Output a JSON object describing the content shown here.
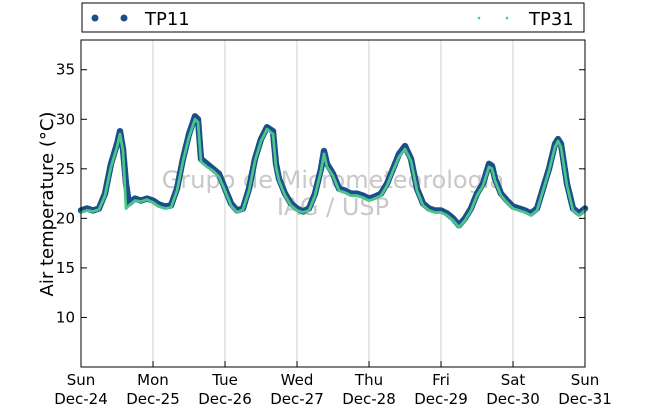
{
  "chart_data": {
    "type": "scatter",
    "ylabel": "Air temperature (°C)",
    "ylim": [
      5,
      38
    ],
    "yticks": [
      10,
      15,
      20,
      25,
      30,
      35
    ],
    "xlim": [
      "2012-12-24 00:00",
      "2012-12-31 00:00"
    ],
    "xticks": [
      {
        "day": "Sun",
        "date": "Dec-24"
      },
      {
        "day": "Mon",
        "date": "Dec-25"
      },
      {
        "day": "Tue",
        "date": "Dec-26"
      },
      {
        "day": "Wed",
        "date": "Dec-27"
      },
      {
        "day": "Thu",
        "date": "Dec-28"
      },
      {
        "day": "Fri",
        "date": "Dec-29"
      },
      {
        "day": "Sat",
        "date": "Dec-30"
      },
      {
        "day": "Sun",
        "date": "Dec-31"
      }
    ],
    "grid": "vertical",
    "legend_position": "top",
    "watermark": [
      "Grupo de Micrometeorologia",
      "IAG / USP"
    ],
    "series": [
      {
        "name": "TP11",
        "color": "#1a4f8b",
        "marker": "large-dot",
        "points": [
          [
            "Dec-24 00:00",
            20.8
          ],
          [
            "Dec-24 02:00",
            21.0
          ],
          [
            "Dec-24 04:00",
            20.8
          ],
          [
            "Dec-24 06:00",
            21.0
          ],
          [
            "Dec-24 08:00",
            22.5
          ],
          [
            "Dec-24 10:00",
            25.5
          ],
          [
            "Dec-24 12:00",
            27.5
          ],
          [
            "Dec-24 13:00",
            28.8
          ],
          [
            "Dec-24 14:00",
            27.0
          ],
          [
            "Dec-24 15:00",
            23.5
          ],
          [
            "Dec-24 16:00",
            21.5
          ],
          [
            "Dec-24 18:00",
            22.0
          ],
          [
            "Dec-24 20:00",
            21.8
          ],
          [
            "Dec-24 22:00",
            22.0
          ],
          [
            "Dec-25 00:00",
            21.8
          ],
          [
            "Dec-25 02:00",
            21.4
          ],
          [
            "Dec-25 04:00",
            21.2
          ],
          [
            "Dec-25 06:00",
            21.3
          ],
          [
            "Dec-25 08:00",
            23.0
          ],
          [
            "Dec-25 10:00",
            26.0
          ],
          [
            "Dec-25 12:00",
            28.5
          ],
          [
            "Dec-25 14:00",
            30.3
          ],
          [
            "Dec-25 15:00",
            30.0
          ],
          [
            "Dec-25 16:00",
            26.0
          ],
          [
            "Dec-25 18:00",
            25.5
          ],
          [
            "Dec-25 20:00",
            25.0
          ],
          [
            "Dec-25 22:00",
            24.5
          ],
          [
            "Dec-26 00:00",
            23.0
          ],
          [
            "Dec-26 02:00",
            21.5
          ],
          [
            "Dec-26 04:00",
            20.8
          ],
          [
            "Dec-26 06:00",
            21.0
          ],
          [
            "Dec-26 08:00",
            23.0
          ],
          [
            "Dec-26 10:00",
            26.0
          ],
          [
            "Dec-26 12:00",
            28.0
          ],
          [
            "Dec-26 14:00",
            29.2
          ],
          [
            "Dec-26 16:00",
            28.8
          ],
          [
            "Dec-26 17:00",
            25.5
          ],
          [
            "Dec-26 18:00",
            24.0
          ],
          [
            "Dec-26 20:00",
            22.5
          ],
          [
            "Dec-26 22:00",
            21.5
          ],
          [
            "Dec-27 00:00",
            21.0
          ],
          [
            "Dec-27 02:00",
            20.7
          ],
          [
            "Dec-27 04:00",
            21.0
          ],
          [
            "Dec-27 06:00",
            22.5
          ],
          [
            "Dec-27 08:00",
            25.0
          ],
          [
            "Dec-27 09:00",
            26.8
          ],
          [
            "Dec-27 10:00",
            25.5
          ],
          [
            "Dec-27 12:00",
            24.5
          ],
          [
            "Dec-27 14:00",
            23.0
          ],
          [
            "Dec-27 16:00",
            22.8
          ],
          [
            "Dec-27 18:00",
            22.5
          ],
          [
            "Dec-27 20:00",
            22.5
          ],
          [
            "Dec-27 22:00",
            22.3
          ],
          [
            "Dec-28 00:00",
            22.0
          ],
          [
            "Dec-28 02:00",
            22.2
          ],
          [
            "Dec-28 04:00",
            22.5
          ],
          [
            "Dec-28 06:00",
            23.5
          ],
          [
            "Dec-28 08:00",
            25.0
          ],
          [
            "Dec-28 10:00",
            26.5
          ],
          [
            "Dec-28 12:00",
            27.3
          ],
          [
            "Dec-28 14:00",
            26.0
          ],
          [
            "Dec-28 16:00",
            23.0
          ],
          [
            "Dec-28 18:00",
            21.5
          ],
          [
            "Dec-28 20:00",
            21.0
          ],
          [
            "Dec-28 22:00",
            20.8
          ],
          [
            "Dec-29 00:00",
            20.8
          ],
          [
            "Dec-29 02:00",
            20.5
          ],
          [
            "Dec-29 04:00",
            20.0
          ],
          [
            "Dec-29 06:00",
            19.3
          ],
          [
            "Dec-29 08:00",
            20.0
          ],
          [
            "Dec-29 10:00",
            21.0
          ],
          [
            "Dec-29 12:00",
            22.5
          ],
          [
            "Dec-29 14:00",
            23.5
          ],
          [
            "Dec-29 16:00",
            25.5
          ],
          [
            "Dec-29 17:00",
            25.3
          ],
          [
            "Dec-29 18:00",
            24.0
          ],
          [
            "Dec-29 20:00",
            22.5
          ],
          [
            "Dec-29 22:00",
            21.8
          ],
          [
            "Dec-30 00:00",
            21.2
          ],
          [
            "Dec-30 02:00",
            21.0
          ],
          [
            "Dec-30 04:00",
            20.8
          ],
          [
            "Dec-30 06:00",
            20.5
          ],
          [
            "Dec-30 08:00",
            21.0
          ],
          [
            "Dec-30 10:00",
            23.0
          ],
          [
            "Dec-30 12:00",
            25.0
          ],
          [
            "Dec-30 14:00",
            27.5
          ],
          [
            "Dec-30 15:00",
            28.0
          ],
          [
            "Dec-30 16:00",
            27.5
          ],
          [
            "Dec-30 18:00",
            23.5
          ],
          [
            "Dec-30 20:00",
            21.0
          ],
          [
            "Dec-30 22:00",
            20.5
          ],
          [
            "Dec-31 00:00",
            21.0
          ]
        ]
      },
      {
        "name": "TP31",
        "color": "#4cc48a",
        "marker": "small-dot",
        "points": [
          [
            "Dec-24 00:00",
            20.6
          ],
          [
            "Dec-24 02:00",
            20.8
          ],
          [
            "Dec-24 04:00",
            20.7
          ],
          [
            "Dec-24 06:00",
            20.9
          ],
          [
            "Dec-24 08:00",
            22.3
          ],
          [
            "Dec-24 10:00",
            25.2
          ],
          [
            "Dec-24 12:00",
            27.2
          ],
          [
            "Dec-24 13:00",
            28.5
          ],
          [
            "Dec-24 14:00",
            26.8
          ],
          [
            "Dec-24 15:00",
            21.0
          ],
          [
            "Dec-24 16:00",
            21.3
          ],
          [
            "Dec-24 18:00",
            21.8
          ],
          [
            "Dec-24 20:00",
            21.7
          ],
          [
            "Dec-24 22:00",
            21.9
          ],
          [
            "Dec-25 00:00",
            21.6
          ],
          [
            "Dec-25 02:00",
            21.2
          ],
          [
            "Dec-25 04:00",
            21.0
          ],
          [
            "Dec-25 06:00",
            21.1
          ],
          [
            "Dec-25 08:00",
            22.8
          ],
          [
            "Dec-25 10:00",
            25.8
          ],
          [
            "Dec-25 12:00",
            28.2
          ],
          [
            "Dec-25 14:00",
            30.0
          ],
          [
            "Dec-25 15:00",
            29.7
          ],
          [
            "Dec-25 16:00",
            25.7
          ],
          [
            "Dec-25 18:00",
            25.2
          ],
          [
            "Dec-25 20:00",
            24.8
          ],
          [
            "Dec-25 22:00",
            24.2
          ],
          [
            "Dec-26 00:00",
            22.8
          ],
          [
            "Dec-26 02:00",
            21.3
          ],
          [
            "Dec-26 04:00",
            20.6
          ],
          [
            "Dec-26 06:00",
            20.9
          ],
          [
            "Dec-26 08:00",
            22.8
          ],
          [
            "Dec-26 10:00",
            25.8
          ],
          [
            "Dec-26 12:00",
            27.8
          ],
          [
            "Dec-26 14:00",
            29.0
          ],
          [
            "Dec-26 16:00",
            28.5
          ],
          [
            "Dec-26 17:00",
            25.2
          ],
          [
            "Dec-26 18:00",
            23.8
          ],
          [
            "Dec-26 20:00",
            22.3
          ],
          [
            "Dec-26 22:00",
            21.3
          ],
          [
            "Dec-27 00:00",
            20.8
          ],
          [
            "Dec-27 02:00",
            20.6
          ],
          [
            "Dec-27 04:00",
            20.8
          ],
          [
            "Dec-27 06:00",
            22.3
          ],
          [
            "Dec-27 08:00",
            24.8
          ],
          [
            "Dec-27 09:00",
            26.5
          ],
          [
            "Dec-27 10:00",
            25.2
          ],
          [
            "Dec-27 12:00",
            24.3
          ],
          [
            "Dec-27 14:00",
            22.8
          ],
          [
            "Dec-27 16:00",
            22.6
          ],
          [
            "Dec-27 18:00",
            22.3
          ],
          [
            "Dec-27 20:00",
            22.3
          ],
          [
            "Dec-27 22:00",
            22.1
          ],
          [
            "Dec-28 00:00",
            21.8
          ],
          [
            "Dec-28 02:00",
            22.0
          ],
          [
            "Dec-28 04:00",
            22.3
          ],
          [
            "Dec-28 06:00",
            23.3
          ],
          [
            "Dec-28 08:00",
            24.8
          ],
          [
            "Dec-28 10:00",
            26.2
          ],
          [
            "Dec-28 12:00",
            27.0
          ],
          [
            "Dec-28 14:00",
            25.8
          ],
          [
            "Dec-28 16:00",
            22.8
          ],
          [
            "Dec-28 18:00",
            21.3
          ],
          [
            "Dec-28 20:00",
            20.8
          ],
          [
            "Dec-28 22:00",
            20.6
          ],
          [
            "Dec-29 00:00",
            20.6
          ],
          [
            "Dec-29 02:00",
            20.3
          ],
          [
            "Dec-29 04:00",
            19.8
          ],
          [
            "Dec-29 06:00",
            19.1
          ],
          [
            "Dec-29 08:00",
            19.8
          ],
          [
            "Dec-29 10:00",
            20.8
          ],
          [
            "Dec-29 12:00",
            22.3
          ],
          [
            "Dec-29 14:00",
            23.3
          ],
          [
            "Dec-29 16:00",
            25.2
          ],
          [
            "Dec-29 17:00",
            25.0
          ],
          [
            "Dec-29 18:00",
            23.8
          ],
          [
            "Dec-29 20:00",
            22.3
          ],
          [
            "Dec-29 22:00",
            21.6
          ],
          [
            "Dec-30 00:00",
            21.0
          ],
          [
            "Dec-30 02:00",
            20.8
          ],
          [
            "Dec-30 04:00",
            20.6
          ],
          [
            "Dec-30 06:00",
            20.3
          ],
          [
            "Dec-30 08:00",
            20.8
          ],
          [
            "Dec-30 10:00",
            22.8
          ],
          [
            "Dec-30 12:00",
            24.8
          ],
          [
            "Dec-30 14:00",
            27.2
          ],
          [
            "Dec-30 15:00",
            27.8
          ],
          [
            "Dec-30 16:00",
            27.2
          ],
          [
            "Dec-30 18:00",
            23.3
          ],
          [
            "Dec-30 20:00",
            20.8
          ],
          [
            "Dec-30 22:00",
            20.3
          ],
          [
            "Dec-31 00:00",
            20.8
          ]
        ]
      }
    ]
  }
}
